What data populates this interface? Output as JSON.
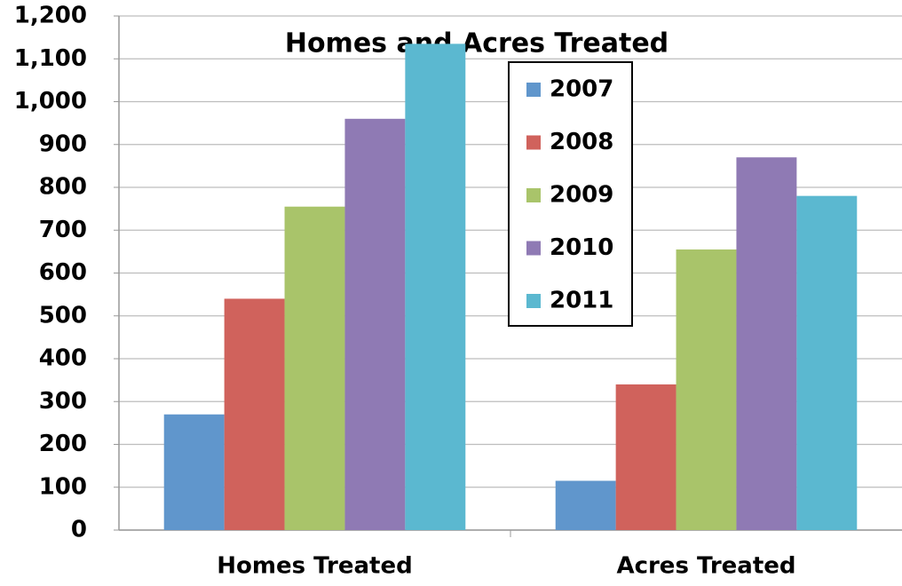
{
  "chart_data": {
    "type": "bar",
    "title": "Homes and Acres Treated",
    "categories": [
      "Homes Treated",
      "Acres Treated"
    ],
    "series": [
      {
        "name": "2007",
        "color": "#6096cc",
        "values": [
          270,
          115
        ]
      },
      {
        "name": "2008",
        "color": "#d0625c",
        "values": [
          540,
          340
        ]
      },
      {
        "name": "2009",
        "color": "#a9c46a",
        "values": [
          755,
          655
        ]
      },
      {
        "name": "2010",
        "color": "#8f7ab4",
        "values": [
          960,
          870
        ]
      },
      {
        "name": "2011",
        "color": "#5bb8d0",
        "values": [
          1135,
          780
        ]
      }
    ],
    "ylim": [
      0,
      1200
    ],
    "yticks": [
      0,
      100,
      200,
      300,
      400,
      500,
      600,
      700,
      800,
      900,
      {
        "value": 1000,
        "label": "1,000"
      },
      {
        "value": 1100,
        "label": "1,100"
      },
      {
        "value": 1200,
        "label": "1,200"
      }
    ],
    "grid": true,
    "legend": "top-center"
  }
}
